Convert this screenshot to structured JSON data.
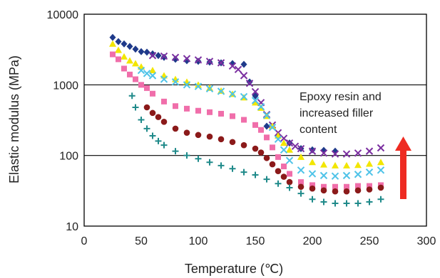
{
  "chart_data": {
    "type": "scatter",
    "title": "",
    "xlabel": "Temperature (℃)",
    "ylabel": "Elastic modulus (MPa)",
    "xlim": [
      0,
      300
    ],
    "ylim": [
      10,
      10000
    ],
    "y_scale": "log",
    "x_ticks": [
      "0",
      "50",
      "100",
      "150",
      "200",
      "250",
      "300"
    ],
    "y_ticks": [
      "10",
      "100",
      "1000",
      "10000"
    ],
    "grid": "horizontal at 100 and 1000",
    "annotation": {
      "lines": [
        "Epoxy resin and",
        "increased filler",
        "content"
      ],
      "arrow": "up",
      "arrow_color": "#ee2b22"
    },
    "series": [
      {
        "marker": "diamond",
        "color": "#1f3a8a",
        "x": [
          25,
          30,
          35,
          40,
          45,
          50,
          55,
          60,
          65,
          70,
          80,
          90,
          100,
          110,
          120,
          130,
          140,
          145,
          150,
          160,
          170,
          180,
          190,
          200,
          210,
          220
        ],
        "y": [
          4700,
          4100,
          3800,
          3500,
          3200,
          2950,
          2900,
          2750,
          2600,
          2450,
          2300,
          2200,
          2150,
          2100,
          2050,
          2000,
          1950,
          1100,
          700,
          260,
          190,
          150,
          125,
          120,
          118,
          115
        ]
      },
      {
        "marker": "x",
        "color": "#7b2fa0",
        "x": [
          60,
          70,
          80,
          90,
          100,
          110,
          120,
          130,
          135,
          140,
          145,
          150,
          155,
          160,
          165,
          170,
          175,
          180,
          185,
          190,
          200,
          210,
          220,
          230,
          240,
          250,
          260
        ],
        "y": [
          2600,
          2550,
          2450,
          2350,
          2250,
          2150,
          2050,
          1850,
          1650,
          1350,
          1050,
          800,
          560,
          380,
          270,
          210,
          175,
          150,
          135,
          125,
          115,
          108,
          105,
          105,
          108,
          115,
          128
        ]
      },
      {
        "marker": "triangle",
        "color": "#f2e600",
        "x": [
          25,
          30,
          35,
          40,
          45,
          50,
          60,
          70,
          80,
          90,
          100,
          110,
          120,
          130,
          140,
          150,
          155,
          160,
          165,
          170,
          175,
          180,
          190,
          200,
          210,
          220,
          230,
          240,
          250,
          260
        ],
        "y": [
          3800,
          3100,
          2500,
          2200,
          2000,
          1800,
          1600,
          1350,
          1200,
          1100,
          1000,
          900,
          820,
          740,
          660,
          560,
          470,
          360,
          260,
          190,
          150,
          120,
          95,
          80,
          74,
          72,
          72,
          73,
          76,
          80
        ]
      },
      {
        "marker": "x",
        "color": "#4fc3e8",
        "x": [
          50,
          55,
          60,
          70,
          80,
          90,
          100,
          110,
          120,
          130,
          140,
          150,
          155,
          160,
          165,
          170,
          175,
          180,
          190,
          200,
          210,
          220,
          230,
          240,
          250,
          260
        ],
        "y": [
          1600,
          1450,
          1350,
          1200,
          1100,
          1000,
          950,
          880,
          810,
          740,
          680,
          600,
          490,
          370,
          250,
          170,
          120,
          85,
          62,
          55,
          52,
          51,
          52,
          54,
          58,
          62
        ]
      },
      {
        "marker": "square",
        "color": "#f06eaa",
        "x": [
          25,
          30,
          35,
          40,
          45,
          50,
          55,
          60,
          70,
          80,
          90,
          100,
          110,
          120,
          130,
          140,
          150,
          155,
          160,
          165,
          170,
          175,
          180,
          190,
          200,
          210,
          220,
          230,
          240,
          250,
          260
        ],
        "y": [
          2700,
          2300,
          1700,
          1400,
          1200,
          1000,
          900,
          750,
          580,
          500,
          460,
          430,
          410,
          390,
          360,
          320,
          270,
          230,
          180,
          130,
          95,
          70,
          55,
          42,
          38,
          36,
          36,
          36,
          37,
          37,
          38
        ]
      },
      {
        "marker": "circle",
        "color": "#8b1a1a",
        "x": [
          55,
          60,
          65,
          70,
          80,
          90,
          100,
          110,
          120,
          130,
          140,
          150,
          155,
          160,
          165,
          170,
          175,
          180,
          190,
          200,
          210,
          220,
          230,
          240,
          250,
          260
        ],
        "y": [
          480,
          400,
          350,
          300,
          240,
          210,
          195,
          185,
          170,
          155,
          140,
          125,
          110,
          92,
          75,
          60,
          50,
          42,
          36,
          34,
          32,
          31,
          31,
          32,
          33,
          35
        ]
      },
      {
        "marker": "plus",
        "color": "#1f8a8a",
        "x": [
          42,
          45,
          50,
          55,
          60,
          65,
          70,
          80,
          90,
          100,
          110,
          120,
          130,
          140,
          150,
          160,
          170,
          180,
          190,
          200,
          210,
          220,
          230,
          240,
          250,
          260
        ],
        "y": [
          700,
          480,
          320,
          240,
          190,
          160,
          140,
          115,
          100,
          90,
          80,
          72,
          65,
          58,
          53,
          46,
          40,
          35,
          29,
          24,
          22,
          21,
          21,
          21,
          22,
          24
        ]
      }
    ]
  }
}
